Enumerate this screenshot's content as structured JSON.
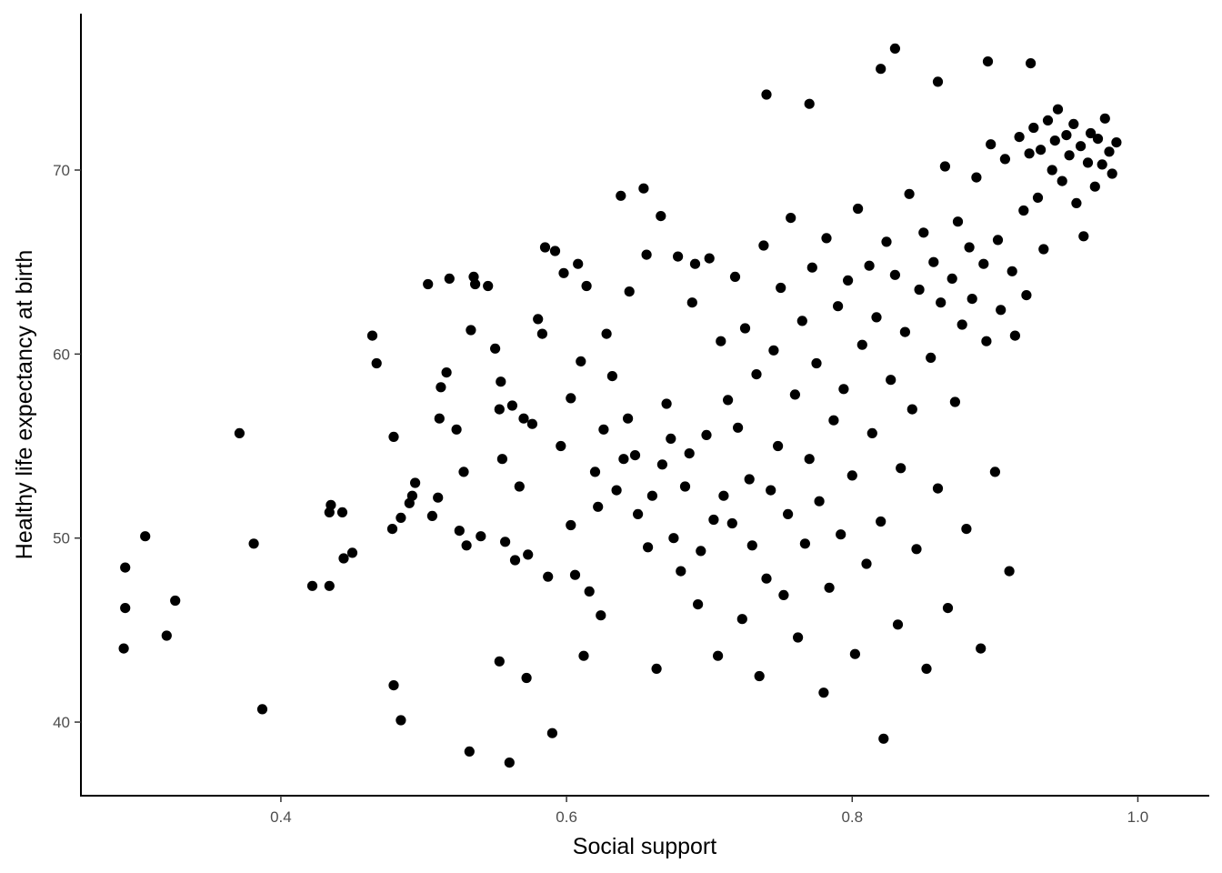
{
  "chart_data": {
    "type": "scatter",
    "title": "",
    "xlabel": "Social support",
    "ylabel": "Healthy life expectancy at birth",
    "xlim": [
      0.26,
      1.05
    ],
    "ylim": [
      36,
      78.5
    ],
    "xticks": [
      0.4,
      0.6,
      0.8,
      1.0
    ],
    "xtick_labels": [
      "0.4",
      "0.6",
      "0.8",
      "1.0"
    ],
    "yticks": [
      40,
      50,
      60,
      70
    ],
    "ytick_labels": [
      "40",
      "50",
      "60",
      "70"
    ],
    "grid": false,
    "legend": "none",
    "point_color": "#000000",
    "points": [
      [
        0.29,
        44.0
      ],
      [
        0.291,
        46.2
      ],
      [
        0.291,
        48.4
      ],
      [
        0.305,
        50.1
      ],
      [
        0.32,
        44.7
      ],
      [
        0.326,
        46.6
      ],
      [
        0.371,
        55.7
      ],
      [
        0.381,
        49.7
      ],
      [
        0.387,
        40.7
      ],
      [
        0.422,
        47.4
      ],
      [
        0.434,
        47.4
      ],
      [
        0.434,
        51.4
      ],
      [
        0.435,
        51.8
      ],
      [
        0.443,
        51.4
      ],
      [
        0.444,
        48.9
      ],
      [
        0.45,
        49.2
      ],
      [
        0.464,
        61.0
      ],
      [
        0.467,
        59.5
      ],
      [
        0.478,
        50.5
      ],
      [
        0.479,
        55.5
      ],
      [
        0.479,
        42.0
      ],
      [
        0.484,
        40.1
      ],
      [
        0.484,
        51.1
      ],
      [
        0.49,
        51.9
      ],
      [
        0.492,
        52.3
      ],
      [
        0.494,
        53.0
      ],
      [
        0.503,
        63.8
      ],
      [
        0.506,
        51.2
      ],
      [
        0.51,
        52.2
      ],
      [
        0.511,
        56.5
      ],
      [
        0.512,
        58.2
      ],
      [
        0.516,
        59.0
      ],
      [
        0.518,
        64.1
      ],
      [
        0.523,
        55.9
      ],
      [
        0.525,
        50.4
      ],
      [
        0.528,
        53.6
      ],
      [
        0.53,
        49.6
      ],
      [
        0.532,
        38.4
      ],
      [
        0.533,
        61.3
      ],
      [
        0.535,
        64.2
      ],
      [
        0.536,
        63.8
      ],
      [
        0.54,
        50.1
      ],
      [
        0.545,
        63.7
      ],
      [
        0.55,
        60.3
      ],
      [
        0.553,
        57.0
      ],
      [
        0.553,
        43.3
      ],
      [
        0.554,
        58.5
      ],
      [
        0.555,
        54.3
      ],
      [
        0.557,
        49.8
      ],
      [
        0.56,
        37.8
      ],
      [
        0.562,
        57.2
      ],
      [
        0.564,
        48.8
      ],
      [
        0.567,
        52.8
      ],
      [
        0.57,
        56.5
      ],
      [
        0.572,
        42.4
      ],
      [
        0.573,
        49.1
      ],
      [
        0.576,
        56.2
      ],
      [
        0.58,
        61.9
      ],
      [
        0.583,
        61.1
      ],
      [
        0.585,
        65.8
      ],
      [
        0.587,
        47.9
      ],
      [
        0.59,
        39.4
      ],
      [
        0.592,
        65.6
      ],
      [
        0.596,
        55.0
      ],
      [
        0.598,
        64.4
      ],
      [
        0.603,
        57.6
      ],
      [
        0.603,
        50.7
      ],
      [
        0.606,
        48.0
      ],
      [
        0.608,
        64.9
      ],
      [
        0.61,
        59.6
      ],
      [
        0.612,
        43.6
      ],
      [
        0.614,
        63.7
      ],
      [
        0.616,
        47.1
      ],
      [
        0.62,
        53.6
      ],
      [
        0.622,
        51.7
      ],
      [
        0.624,
        45.8
      ],
      [
        0.626,
        55.9
      ],
      [
        0.628,
        61.1
      ],
      [
        0.632,
        58.8
      ],
      [
        0.635,
        52.6
      ],
      [
        0.638,
        68.6
      ],
      [
        0.64,
        54.3
      ],
      [
        0.643,
        56.5
      ],
      [
        0.644,
        63.4
      ],
      [
        0.648,
        54.5
      ],
      [
        0.65,
        51.3
      ],
      [
        0.654,
        69.0
      ],
      [
        0.656,
        65.4
      ],
      [
        0.657,
        49.5
      ],
      [
        0.66,
        52.3
      ],
      [
        0.663,
        42.9
      ],
      [
        0.666,
        67.5
      ],
      [
        0.667,
        54.0
      ],
      [
        0.67,
        57.3
      ],
      [
        0.673,
        55.4
      ],
      [
        0.675,
        50.0
      ],
      [
        0.678,
        65.3
      ],
      [
        0.68,
        48.2
      ],
      [
        0.683,
        52.8
      ],
      [
        0.686,
        54.6
      ],
      [
        0.688,
        62.8
      ],
      [
        0.69,
        64.9
      ],
      [
        0.692,
        46.4
      ],
      [
        0.694,
        49.3
      ],
      [
        0.698,
        55.6
      ],
      [
        0.7,
        65.2
      ],
      [
        0.703,
        51.0
      ],
      [
        0.706,
        43.6
      ],
      [
        0.708,
        60.7
      ],
      [
        0.71,
        52.3
      ],
      [
        0.713,
        57.5
      ],
      [
        0.716,
        50.8
      ],
      [
        0.718,
        64.2
      ],
      [
        0.72,
        56.0
      ],
      [
        0.723,
        45.6
      ],
      [
        0.725,
        61.4
      ],
      [
        0.728,
        53.2
      ],
      [
        0.73,
        49.6
      ],
      [
        0.733,
        58.9
      ],
      [
        0.735,
        42.5
      ],
      [
        0.738,
        65.9
      ],
      [
        0.74,
        47.8
      ],
      [
        0.743,
        52.6
      ],
      [
        0.745,
        60.2
      ],
      [
        0.748,
        55.0
      ],
      [
        0.75,
        63.6
      ],
      [
        0.752,
        46.9
      ],
      [
        0.755,
        51.3
      ],
      [
        0.757,
        67.4
      ],
      [
        0.76,
        57.8
      ],
      [
        0.762,
        44.6
      ],
      [
        0.765,
        61.8
      ],
      [
        0.767,
        49.7
      ],
      [
        0.77,
        54.3
      ],
      [
        0.772,
        64.7
      ],
      [
        0.775,
        59.5
      ],
      [
        0.777,
        52.0
      ],
      [
        0.78,
        41.6
      ],
      [
        0.782,
        66.3
      ],
      [
        0.784,
        47.3
      ],
      [
        0.787,
        56.4
      ],
      [
        0.79,
        62.6
      ],
      [
        0.792,
        50.2
      ],
      [
        0.794,
        58.1
      ],
      [
        0.797,
        64.0
      ],
      [
        0.8,
        53.4
      ],
      [
        0.802,
        43.7
      ],
      [
        0.804,
        67.9
      ],
      [
        0.807,
        60.5
      ],
      [
        0.81,
        48.6
      ],
      [
        0.812,
        64.8
      ],
      [
        0.814,
        55.7
      ],
      [
        0.817,
        62.0
      ],
      [
        0.82,
        50.9
      ],
      [
        0.822,
        39.1
      ],
      [
        0.824,
        66.1
      ],
      [
        0.827,
        58.6
      ],
      [
        0.83,
        64.3
      ],
      [
        0.832,
        45.3
      ],
      [
        0.834,
        53.8
      ],
      [
        0.837,
        61.2
      ],
      [
        0.84,
        68.7
      ],
      [
        0.842,
        57.0
      ],
      [
        0.845,
        49.4
      ],
      [
        0.847,
        63.5
      ],
      [
        0.85,
        66.6
      ],
      [
        0.852,
        42.9
      ],
      [
        0.855,
        59.8
      ],
      [
        0.857,
        65.0
      ],
      [
        0.86,
        52.7
      ],
      [
        0.862,
        62.8
      ],
      [
        0.865,
        70.2
      ],
      [
        0.867,
        46.2
      ],
      [
        0.87,
        64.1
      ],
      [
        0.872,
        57.4
      ],
      [
        0.874,
        67.2
      ],
      [
        0.877,
        61.6
      ],
      [
        0.88,
        50.5
      ],
      [
        0.882,
        65.8
      ],
      [
        0.884,
        63.0
      ],
      [
        0.887,
        69.6
      ],
      [
        0.89,
        44.0
      ],
      [
        0.892,
        64.9
      ],
      [
        0.894,
        60.7
      ],
      [
        0.897,
        71.4
      ],
      [
        0.9,
        53.6
      ],
      [
        0.902,
        66.2
      ],
      [
        0.904,
        62.4
      ],
      [
        0.907,
        70.6
      ],
      [
        0.91,
        48.2
      ],
      [
        0.912,
        64.5
      ],
      [
        0.914,
        61.0
      ],
      [
        0.917,
        71.8
      ],
      [
        0.92,
        67.8
      ],
      [
        0.922,
        63.2
      ],
      [
        0.924,
        70.9
      ],
      [
        0.927,
        72.3
      ],
      [
        0.93,
        68.5
      ],
      [
        0.932,
        71.1
      ],
      [
        0.934,
        65.7
      ],
      [
        0.937,
        72.7
      ],
      [
        0.94,
        70.0
      ],
      [
        0.942,
        71.6
      ],
      [
        0.944,
        73.3
      ],
      [
        0.947,
        69.4
      ],
      [
        0.95,
        71.9
      ],
      [
        0.952,
        70.8
      ],
      [
        0.955,
        72.5
      ],
      [
        0.957,
        68.2
      ],
      [
        0.96,
        71.3
      ],
      [
        0.962,
        66.4
      ],
      [
        0.965,
        70.4
      ],
      [
        0.967,
        72.0
      ],
      [
        0.97,
        69.1
      ],
      [
        0.972,
        71.7
      ],
      [
        0.975,
        70.3
      ],
      [
        0.977,
        72.8
      ],
      [
        0.98,
        71.0
      ],
      [
        0.982,
        69.8
      ],
      [
        0.985,
        71.5
      ],
      [
        0.83,
        76.6
      ],
      [
        0.82,
        75.5
      ],
      [
        0.895,
        75.9
      ],
      [
        0.925,
        75.8
      ],
      [
        0.77,
        73.6
      ],
      [
        0.74,
        74.1
      ],
      [
        0.86,
        74.8
      ]
    ]
  }
}
